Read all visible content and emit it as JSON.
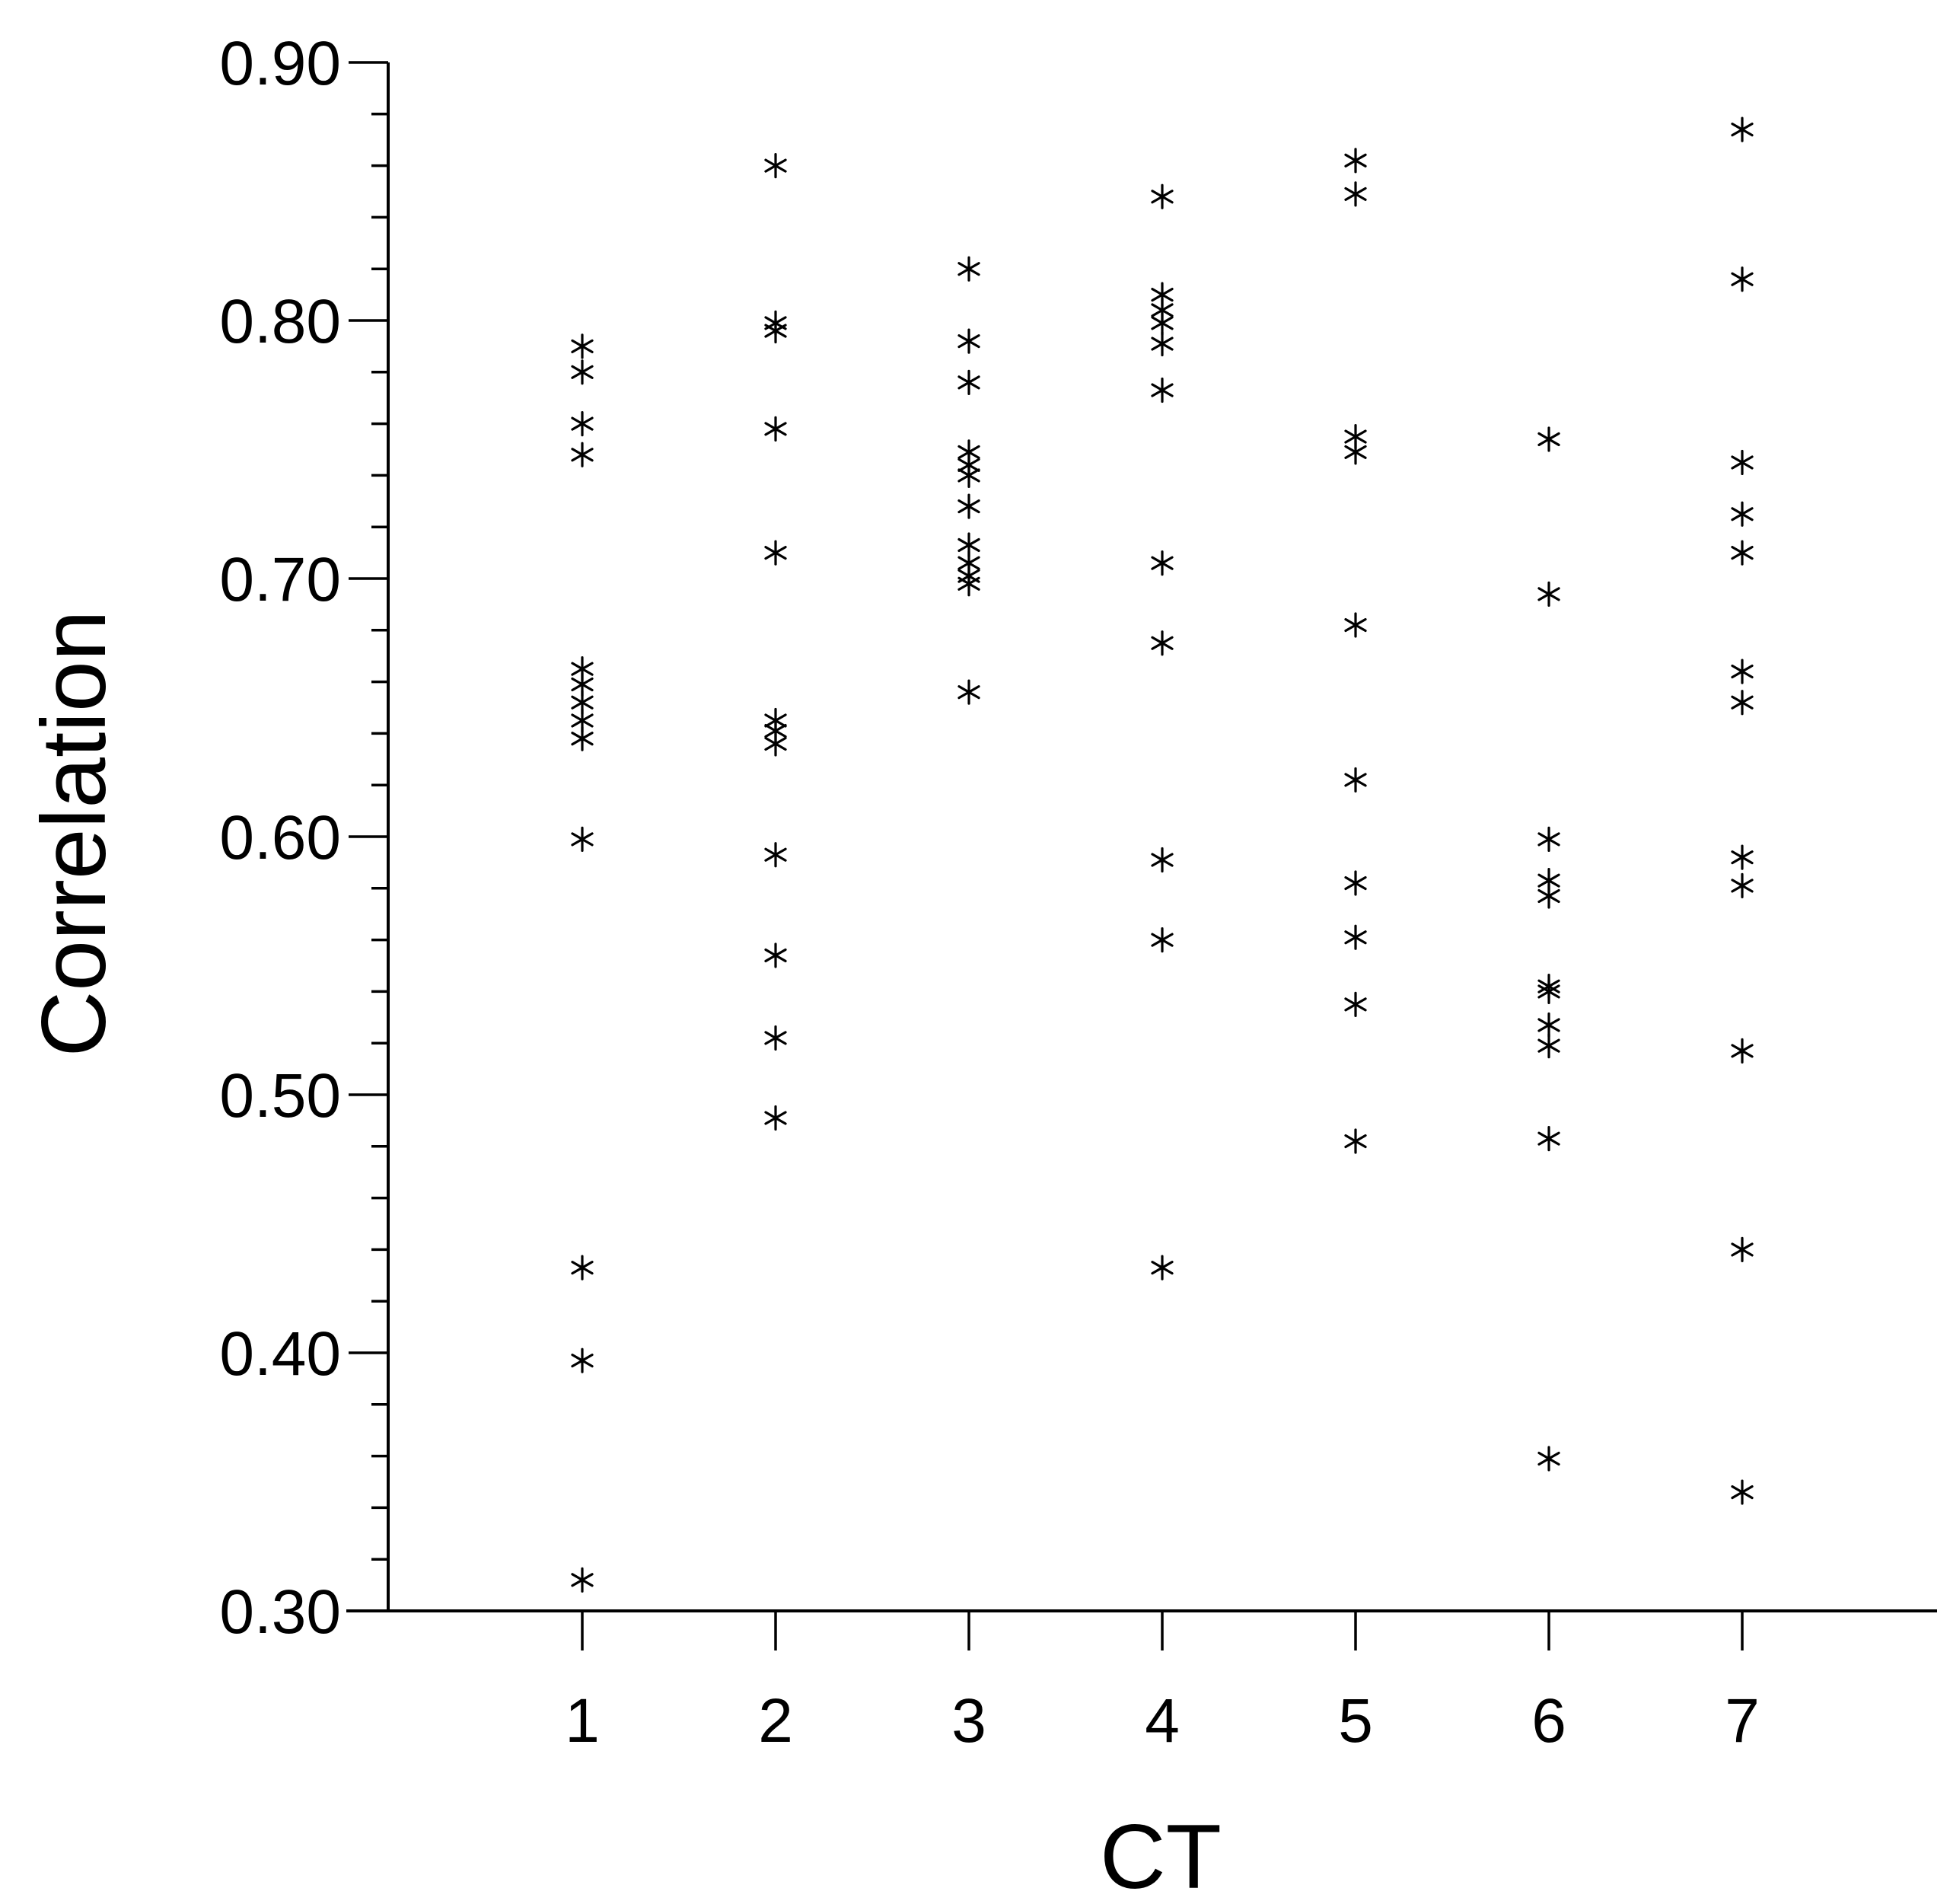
{
  "chart_data": {
    "type": "scatter",
    "marker": "asterisk",
    "marker_color": "#000000",
    "xlabel": "CT",
    "ylabel": "Correlation",
    "xlim": [
      0,
      8
    ],
    "ylim": [
      0.3,
      0.9
    ],
    "x_ticks": [
      "1",
      "2",
      "3",
      "4",
      "5",
      "6",
      "7"
    ],
    "y_ticks": [
      "0.30",
      "0.40",
      "0.50",
      "0.60",
      "0.70",
      "0.80",
      "0.90"
    ],
    "y_minor_step": 0.02,
    "grid": false,
    "series": [
      {
        "x": 1,
        "values": [
          0.79,
          0.78,
          0.76,
          0.748,
          0.665,
          0.659,
          0.652,
          0.645,
          0.638,
          0.599,
          0.433,
          0.397,
          0.312
        ]
      },
      {
        "x": 2,
        "values": [
          0.86,
          0.799,
          0.796,
          0.758,
          0.71,
          0.645,
          0.641,
          0.636,
          0.593,
          0.554,
          0.522,
          0.491
        ]
      },
      {
        "x": 3,
        "values": [
          0.82,
          0.792,
          0.776,
          0.749,
          0.744,
          0.74,
          0.728,
          0.713,
          0.706,
          0.701,
          0.698,
          0.656
        ]
      },
      {
        "x": 4,
        "values": [
          0.848,
          0.81,
          0.804,
          0.799,
          0.791,
          0.773,
          0.706,
          0.675,
          0.591,
          0.56,
          0.433
        ]
      },
      {
        "x": 5,
        "values": [
          0.862,
          0.849,
          0.755,
          0.749,
          0.682,
          0.622,
          0.582,
          0.561,
          0.535,
          0.482
        ]
      },
      {
        "x": 6,
        "values": [
          0.754,
          0.694,
          0.599,
          0.583,
          0.577,
          0.542,
          0.54,
          0.527,
          0.519,
          0.483,
          0.359
        ]
      },
      {
        "x": 7,
        "values": [
          0.874,
          0.816,
          0.745,
          0.725,
          0.71,
          0.664,
          0.652,
          0.592,
          0.581,
          0.517,
          0.44,
          0.346
        ]
      }
    ]
  }
}
